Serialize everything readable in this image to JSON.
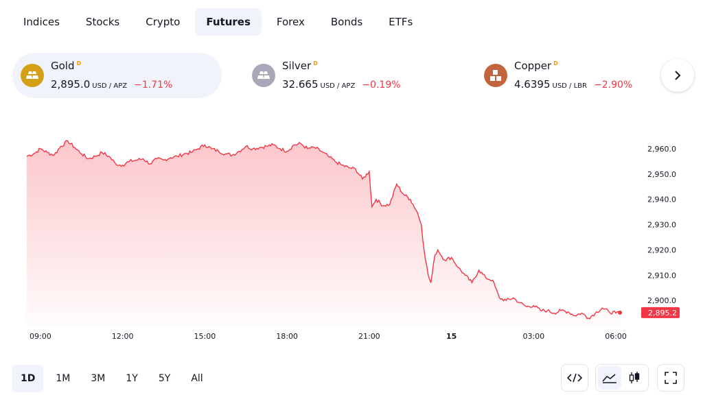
{
  "tabs": [
    "Indices",
    "Stocks",
    "Crypto",
    "Futures",
    "Forex",
    "Bonds",
    "ETFs"
  ],
  "active_tab": "Futures",
  "instruments": [
    {
      "name": "Gold",
      "badge": "D",
      "price": "2,895.0",
      "unit": "USD / APZ",
      "change": "−1.71%",
      "icon": "gold-bars-icon",
      "color": "#d4a017"
    },
    {
      "name": "Silver",
      "badge": "D",
      "price": "32.665",
      "unit": "USD / APZ",
      "change": "−0.19%",
      "icon": "silver-bars-icon",
      "color": "#a8a8b8"
    },
    {
      "name": "Copper",
      "badge": "D",
      "price": "4.6395",
      "unit": "USD / LBR",
      "change": "−2.90%",
      "icon": "copper-blocks-icon",
      "color": "#c4643c"
    }
  ],
  "next_icon": "chevron-right-icon",
  "chart_data": {
    "type": "area",
    "series": [
      {
        "values": [
          [
            0,
            2957
          ],
          [
            0.5,
            2958
          ],
          [
            1,
            2960
          ],
          [
            1.5,
            2958.5
          ],
          [
            2,
            2957.5
          ],
          [
            2.5,
            2961
          ],
          [
            3,
            2963
          ],
          [
            3.5,
            2960.5
          ],
          [
            4,
            2958
          ],
          [
            4.5,
            2956
          ],
          [
            5,
            2957
          ],
          [
            5.5,
            2958.5
          ],
          [
            6,
            2957
          ],
          [
            6.5,
            2954
          ],
          [
            7,
            2953.5
          ],
          [
            7.5,
            2955
          ],
          [
            8,
            2955.5
          ],
          [
            8.5,
            2956
          ],
          [
            9,
            2954
          ],
          [
            9.5,
            2956
          ],
          [
            10,
            2955.5
          ],
          [
            10.5,
            2956.5
          ],
          [
            11,
            2957
          ],
          [
            11.5,
            2958
          ],
          [
            12,
            2958.5
          ],
          [
            12.5,
            2960
          ],
          [
            13,
            2961.5
          ],
          [
            13.5,
            2960
          ],
          [
            14,
            2959
          ],
          [
            14.5,
            2958
          ],
          [
            15,
            2957.5
          ],
          [
            15.5,
            2959
          ],
          [
            16,
            2961
          ],
          [
            16.5,
            2960
          ],
          [
            17,
            2960.5
          ],
          [
            17.5,
            2961
          ],
          [
            18,
            2961.5
          ],
          [
            18.5,
            2960
          ],
          [
            19,
            2959
          ],
          [
            19.5,
            2961.5
          ],
          [
            20,
            2962
          ],
          [
            20.5,
            2960
          ],
          [
            21,
            2960.5
          ],
          [
            21.5,
            2959
          ],
          [
            22,
            2957
          ],
          [
            22.5,
            2955
          ],
          [
            23,
            2953.5
          ],
          [
            23.5,
            2952.5
          ],
          [
            24,
            2952
          ],
          [
            24.5,
            2948
          ],
          [
            25,
            2951
          ],
          [
            25.2,
            2937
          ],
          [
            25.5,
            2940
          ],
          [
            26,
            2937.5
          ],
          [
            26.5,
            2938
          ],
          [
            27,
            2946
          ],
          [
            27.5,
            2942
          ],
          [
            28,
            2940
          ],
          [
            28.5,
            2935
          ],
          [
            28.8,
            2930
          ],
          [
            29,
            2920
          ],
          [
            29.3,
            2910
          ],
          [
            29.5,
            2907
          ],
          [
            29.8,
            2918
          ],
          [
            30,
            2920
          ],
          [
            30.5,
            2916
          ],
          [
            31,
            2917
          ],
          [
            31.5,
            2913
          ],
          [
            32,
            2910
          ],
          [
            32.5,
            2907
          ],
          [
            33,
            2912
          ],
          [
            33.5,
            2909
          ],
          [
            34,
            2908
          ],
          [
            34.5,
            2901
          ],
          [
            35,
            2900
          ],
          [
            35.5,
            2901
          ],
          [
            36,
            2899
          ],
          [
            36.5,
            2897.5
          ],
          [
            37,
            2898
          ],
          [
            37.5,
            2896
          ],
          [
            38,
            2896
          ],
          [
            38.5,
            2895
          ],
          [
            39,
            2896
          ],
          [
            39.5,
            2895.5
          ],
          [
            40,
            2894
          ],
          [
            40.5,
            2895
          ],
          [
            41,
            2893
          ],
          [
            41.5,
            2895
          ],
          [
            42,
            2897
          ],
          [
            42.5,
            2895.5
          ],
          [
            43,
            2895
          ],
          [
            43.3,
            2895.2
          ]
        ]
      }
    ],
    "x_ticks": [
      {
        "x": 1,
        "label": "09:00"
      },
      {
        "x": 7,
        "label": "12:00"
      },
      {
        "x": 13,
        "label": "15:00"
      },
      {
        "x": 19,
        "label": "18:00"
      },
      {
        "x": 25,
        "label": "21:00"
      },
      {
        "x": 31,
        "label": "15"
      },
      {
        "x": 37,
        "label": "03:00"
      },
      {
        "x": 43,
        "label": "06:00"
      }
    ],
    "y_ticks": [
      "2,960.0",
      "2,950.0",
      "2,940.0",
      "2,930.0",
      "2,920.0",
      "2,910.0",
      "2,900.0"
    ],
    "y_tick_values": [
      2960,
      2950,
      2940,
      2930,
      2920,
      2910,
      2900
    ],
    "ylim": [
      2890,
      2970
    ],
    "xlim": [
      -1.95,
      44.4
    ],
    "last_value": 2895.2,
    "last_label": "2,895.2",
    "line_color": "#f23645",
    "grid": false
  },
  "ranges": [
    "1D",
    "1M",
    "3M",
    "1Y",
    "5Y",
    "All"
  ],
  "active_range": "1D",
  "tools": {
    "embed_icon": "embed-code-icon",
    "area_icon": "area-chart-icon",
    "candle_icon": "candlestick-icon",
    "fullscreen_icon": "fullscreen-icon"
  }
}
